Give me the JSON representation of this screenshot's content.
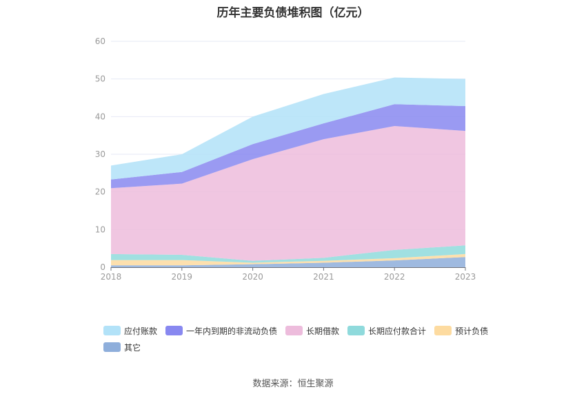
{
  "chart_data": {
    "type": "area",
    "stacked": true,
    "title": "历年主要负债堆积图（亿元）",
    "categories": [
      "2018",
      "2019",
      "2020",
      "2021",
      "2022",
      "2023"
    ],
    "ylim": [
      0,
      60
    ],
    "yticks": [
      "0",
      "10",
      "20",
      "30",
      "40",
      "50",
      "60"
    ],
    "grid": true,
    "legend_position": "bottom",
    "series": [
      {
        "name": "其它",
        "color": "#8eaedb",
        "values": [
          0.5,
          0.5,
          0.8,
          1.2,
          1.8,
          2.7
        ]
      },
      {
        "name": "预计负债",
        "color": "#fddba0",
        "values": [
          1.4,
          1.4,
          0.4,
          0.5,
          0.6,
          0.8
        ]
      },
      {
        "name": "长期应付款合计",
        "color": "#8fdadc",
        "values": [
          1.6,
          1.4,
          0.5,
          0.8,
          2.2,
          2.3
        ]
      },
      {
        "name": "长期借款",
        "color": "#edbcdc",
        "values": [
          17.5,
          18.9,
          27.0,
          31.5,
          32.9,
          30.4
        ]
      },
      {
        "name": "一年内到期的非流动负债",
        "color": "#8888f0",
        "values": [
          2.3,
          3.1,
          4.0,
          4.2,
          5.8,
          6.6
        ]
      },
      {
        "name": "应付账款",
        "color": "#b2e2f8",
        "values": [
          3.7,
          4.7,
          7.3,
          7.8,
          7.1,
          7.2
        ]
      }
    ],
    "legend_order": [
      "应付账款",
      "一年内到期的非流动负债",
      "长期借款",
      "长期应付款合计",
      "预计负债",
      "其它"
    ]
  },
  "source": "数据来源：恒生聚源"
}
